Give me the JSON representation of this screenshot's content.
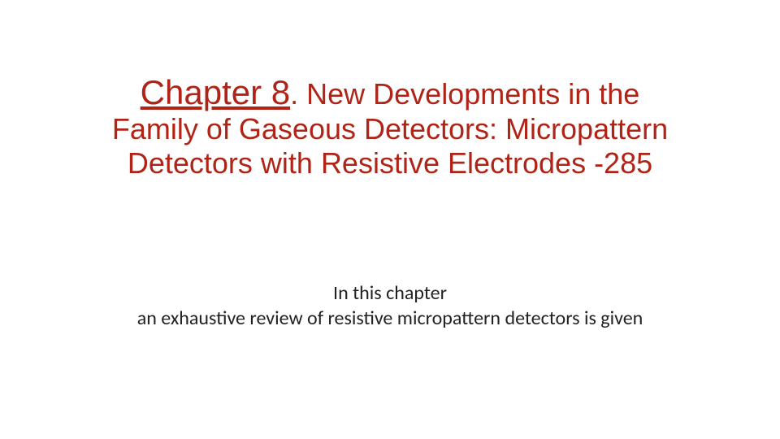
{
  "colors": {
    "title": "#b02418",
    "body": "#222222",
    "background": "#ffffff"
  },
  "typography": {
    "title_chapter_fontsize": 42,
    "title_fontsize": 36,
    "body_fontsize": 24,
    "title_font": "Arial",
    "body_font": "Calibri"
  },
  "title": {
    "chapter_label": "Chapter 8",
    "dot": ".",
    "line1_rest": " New Developments in the",
    "line2": "Family of Gaseous Detectors: Micropattern",
    "line3": "Detectors with Resistive Electrodes -285"
  },
  "body": {
    "line1": "In this chapter",
    "line2": "an exhaustive review of resistive micropattern detectors is given"
  },
  "layout": {
    "slide_width": 960,
    "slide_height": 540
  }
}
